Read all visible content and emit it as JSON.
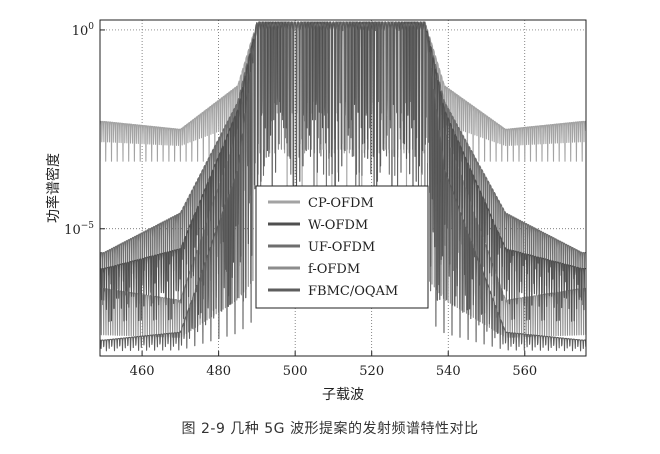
{
  "caption": "图 2-9   几种 5G 波形提案的发射频谱特性对比",
  "chart_data": {
    "type": "line",
    "title": "",
    "xlabel": "子载波",
    "ylabel": "功率谱密度",
    "xlim": [
      449,
      576
    ],
    "y_scale": "log",
    "ylim_exp": [
      -8.2,
      0.25
    ],
    "x_ticks": [
      460,
      480,
      500,
      520,
      540,
      560
    ],
    "x_tick_labels": [
      "460",
      "480",
      "500",
      "520",
      "540",
      "560"
    ],
    "y_ticks": [
      {
        "value_exp": 0,
        "base": "10",
        "exp": "0"
      },
      {
        "value_exp": -5,
        "base": "10",
        "exp": "−5"
      }
    ],
    "grid": true,
    "legend_position": "center",
    "band": [
      487.5,
      536.5
    ],
    "series": [
      {
        "name": "CP-OFDM",
        "color": "#a3a3a3",
        "floor_exp": -3.3,
        "far_exp": -2.3,
        "sample_x": [
          450,
          470,
          485,
          490,
          512,
          534,
          539,
          555,
          575
        ],
        "sample_exp": [
          -2.3,
          -2.5,
          -1.4,
          0.2,
          0.2,
          0.2,
          -1.4,
          -2.5,
          -2.3
        ]
      },
      {
        "name": "W-OFDM",
        "color": "#4f4f4f",
        "floor_exp": -7.5,
        "far_exp": -6.0,
        "sample_x": [
          450,
          470,
          485,
          490,
          512,
          534,
          539,
          555,
          575
        ],
        "sample_exp": [
          -6.0,
          -5.5,
          -2.0,
          0.2,
          0.2,
          0.2,
          -2.0,
          -5.5,
          -6.0
        ]
      },
      {
        "name": "UF-OFDM",
        "color": "#6e6e6e",
        "floor_exp": -7.0,
        "far_exp": -5.6,
        "sample_x": [
          450,
          470,
          485,
          490,
          512,
          534,
          539,
          555,
          575
        ],
        "sample_exp": [
          -5.6,
          -4.6,
          -1.8,
          0.2,
          0.2,
          0.2,
          -1.8,
          -4.6,
          -5.6
        ]
      },
      {
        "name": "f-OFDM",
        "color": "#8c8c8c",
        "floor_exp": -8.0,
        "far_exp": -6.5,
        "sample_x": [
          450,
          470,
          485,
          490,
          512,
          534,
          539,
          555,
          575
        ],
        "sample_exp": [
          -6.5,
          -6.8,
          -2.5,
          0.2,
          0.2,
          0.2,
          -2.5,
          -6.8,
          -6.5
        ]
      },
      {
        "name": "FBMC/OQAM",
        "color": "#5e5e5e",
        "floor_exp": -8.1,
        "far_exp": -7.8,
        "sample_x": [
          450,
          470,
          485,
          490,
          512,
          534,
          539,
          555,
          575
        ],
        "sample_exp": [
          -7.8,
          -7.6,
          -3.5,
          0.2,
          0.2,
          0.2,
          -3.5,
          -7.6,
          -7.8
        ]
      }
    ]
  }
}
